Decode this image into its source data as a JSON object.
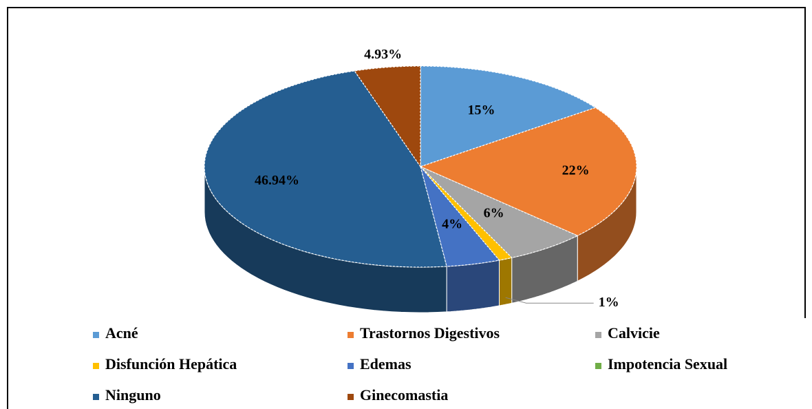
{
  "chart_data": {
    "type": "pie",
    "categories": [
      "Acné",
      "Trastornos Digestivos",
      "Calvicie",
      "Disfunción Hepática",
      "Edemas",
      "Impotencia Sexual",
      "Ninguno",
      "Ginecomastia"
    ],
    "values": [
      15,
      22,
      6,
      1,
      4,
      0,
      46.94,
      4.93
    ],
    "value_labels": [
      "15%",
      "22%",
      "6%",
      "1%",
      "4%",
      null,
      "46.94%",
      "4.93%"
    ],
    "colors": [
      "#5b9bd5",
      "#ed7d31",
      "#a5a5a5",
      "#ffc000",
      "#4472c4",
      "#70ad47",
      "#255e91",
      "#9e480e"
    ],
    "legend": "bottom"
  }
}
